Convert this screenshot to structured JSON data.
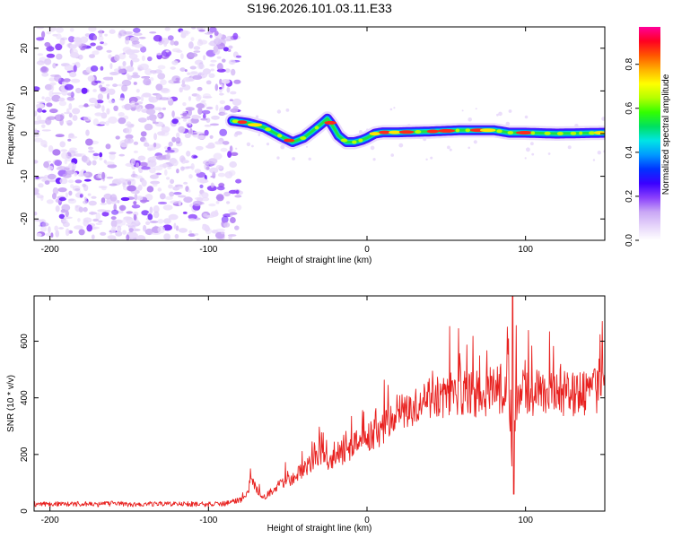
{
  "title": "S196.2026.101.03.11.E33",
  "chart_data": [
    {
      "type": "heatmap",
      "name": "spectrogram",
      "xlabel": "Height of straight line (km)",
      "ylabel": "Frequency (Hz)",
      "xlim": [
        -210,
        150
      ],
      "ylim": [
        -25,
        25
      ],
      "xticks": [
        -200,
        -100,
        0,
        100
      ],
      "xtick_labels": [
        "-200",
        "-100",
        "0",
        "100"
      ],
      "yticks": [
        -20,
        -10,
        0,
        10,
        20
      ],
      "ytick_labels": [
        "-20",
        "-10",
        "0",
        "10",
        "20"
      ],
      "noise_region_x": [
        -210,
        -85
      ],
      "ridge": {
        "x": [
          -85,
          -75,
          -65,
          -55,
          -47,
          -40,
          -33,
          -28,
          -25,
          -22,
          -18,
          -13,
          -8,
          -3,
          0,
          5,
          10,
          20,
          40,
          60,
          80,
          90,
          100,
          120,
          150
        ],
        "y": [
          3,
          2.5,
          1.5,
          -0.5,
          -2,
          -1,
          1,
          2.5,
          3.5,
          2,
          -0.5,
          -2,
          -2,
          -1.5,
          -1,
          0,
          0.3,
          0.3,
          0.5,
          0.8,
          0.8,
          0.2,
          0.2,
          0,
          0.2
        ]
      },
      "colorbar": {
        "label": "Normalized spectral amplitude",
        "range": [
          0,
          0.97
        ],
        "ticks": [
          0,
          0.2,
          0.4,
          0.6,
          0.8
        ],
        "tick_labels": [
          "0.0",
          "0.2",
          "0.4",
          "0.6",
          "0.8"
        ],
        "colors": [
          "#ffffff",
          "#e6d5fa",
          "#c9a7f5",
          "#8a3ffc",
          "#3a00ff",
          "#0033ff",
          "#0099ff",
          "#00e5e5",
          "#00e060",
          "#33ff00",
          "#b4ff00",
          "#ffff00",
          "#ffb000",
          "#ff5500",
          "#ff0022",
          "#ff0099"
        ]
      }
    },
    {
      "type": "line",
      "name": "snr",
      "xlabel": "Height of straight line (km)",
      "ylabel": "SNR (10 * v/v)",
      "xlim": [
        -210,
        150
      ],
      "ylim": [
        0,
        760
      ],
      "xticks": [
        -200,
        -100,
        0,
        100
      ],
      "xtick_labels": [
        "-200",
        "-100",
        "0",
        "100"
      ],
      "yticks": [
        0,
        200,
        400,
        600
      ],
      "ytick_labels": [
        "0",
        "200",
        "400",
        "600"
      ],
      "series": [
        {
          "name": "SNR",
          "color": "#e8211f",
          "x": [
            -210,
            -200,
            -190,
            -180,
            -170,
            -160,
            -150,
            -140,
            -130,
            -120,
            -110,
            -100,
            -90,
            -80,
            -75,
            -72,
            -70,
            -65,
            -60,
            -55,
            -50,
            -45,
            -40,
            -35,
            -30,
            -25,
            -20,
            -15,
            -10,
            -5,
            0,
            5,
            10,
            15,
            20,
            25,
            30,
            35,
            40,
            45,
            50,
            55,
            60,
            65,
            70,
            75,
            80,
            85,
            88,
            90,
            92,
            94,
            96,
            100,
            110,
            120,
            130,
            140,
            150
          ],
          "y": [
            25,
            24,
            26,
            25,
            23,
            27,
            24,
            25,
            26,
            24,
            25,
            24,
            26,
            40,
            80,
            130,
            90,
            50,
            70,
            110,
            120,
            140,
            170,
            190,
            210,
            200,
            220,
            230,
            260,
            280,
            300,
            310,
            330,
            360,
            400,
            420,
            430,
            440,
            450,
            460,
            470,
            480,
            475,
            480,
            470,
            480,
            490,
            480,
            470,
            430,
            80,
            450,
            470,
            480,
            470,
            480,
            475,
            480,
            490
          ]
        }
      ]
    }
  ]
}
